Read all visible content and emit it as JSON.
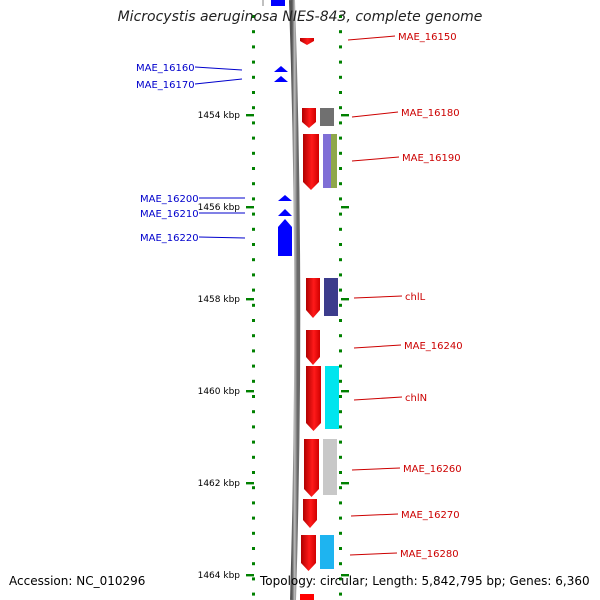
{
  "header": {
    "title": "Microcystis aeruginosa NIES-843, complete genome"
  },
  "footer": {
    "accession": "Accession: NC_010296",
    "topology": "Topology: circular; Length: 5,842,795 bp; Genes: 6,360"
  },
  "colors": {
    "axis_tick": "#008000",
    "forward_gene": "#ff0000",
    "reverse_gene": "#0000ff",
    "forward_label": "#cc0000",
    "reverse_label": "#0000cc",
    "backbone": "#888888"
  },
  "scale_labels": [
    "1454 kbp",
    "1456 kbp",
    "1458 kbp",
    "1460 kbp",
    "1462 kbp",
    "1464 kbp"
  ],
  "reverse_genes": [
    {
      "label": "MAE_16160"
    },
    {
      "label": "MAE_16170"
    },
    {
      "label": "MAE_16200"
    },
    {
      "label": "MAE_16210"
    },
    {
      "label": "MAE_16220"
    }
  ],
  "forward_genes": [
    {
      "label": "MAE_16150",
      "function_color": ""
    },
    {
      "label": "MAE_16180",
      "function_color": "#707070"
    },
    {
      "label": "MAE_16190",
      "function_color": "#7f6fd6"
    },
    {
      "label": "chlL",
      "function_color": "#3c3c8c"
    },
    {
      "label": "MAE_16240",
      "function_color": ""
    },
    {
      "label": "chlN",
      "function_color": "#00e5ee"
    },
    {
      "label": "MAE_16260",
      "function_color": "#c8c8c8"
    },
    {
      "label": "MAE_16270",
      "function_color": ""
    },
    {
      "label": "MAE_16280",
      "function_color": "#1eb4f0"
    }
  ]
}
